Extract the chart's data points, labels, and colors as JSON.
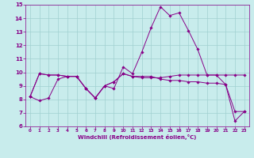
{
  "xlabel": "Windchill (Refroidissement éolien,°C)",
  "background_color": "#c8ecec",
  "grid_color": "#a0d0d0",
  "line_color": "#880088",
  "spine_color": "#880088",
  "x": [
    0,
    1,
    2,
    3,
    4,
    5,
    6,
    7,
    8,
    9,
    10,
    11,
    12,
    13,
    14,
    15,
    16,
    17,
    18,
    19,
    20,
    21,
    22,
    23
  ],
  "series": [
    [
      8.2,
      7.9,
      8.1,
      9.5,
      9.7,
      9.7,
      8.8,
      8.1,
      9.0,
      8.8,
      10.4,
      9.9,
      11.5,
      13.3,
      14.85,
      14.2,
      14.4,
      13.1,
      11.7,
      9.8,
      9.8,
      9.1,
      6.4,
      7.1
    ],
    [
      8.2,
      9.9,
      9.8,
      9.8,
      9.7,
      9.7,
      8.8,
      8.1,
      9.0,
      9.3,
      9.9,
      9.7,
      9.6,
      9.6,
      9.6,
      9.7,
      9.8,
      9.8,
      9.8,
      9.8,
      9.8,
      9.8,
      9.8,
      9.8
    ],
    [
      8.2,
      9.9,
      9.8,
      9.8,
      9.7,
      9.7,
      8.8,
      8.1,
      9.0,
      9.3,
      9.9,
      9.7,
      9.7,
      9.7,
      9.5,
      9.4,
      9.4,
      9.3,
      9.3,
      9.2,
      9.2,
      9.1,
      7.1,
      7.1
    ]
  ],
  "ylim": [
    6,
    15
  ],
  "xlim": [
    -0.5,
    23.5
  ],
  "xticks": [
    0,
    1,
    2,
    3,
    4,
    5,
    6,
    7,
    8,
    9,
    10,
    11,
    12,
    13,
    14,
    15,
    16,
    17,
    18,
    19,
    20,
    21,
    22,
    23
  ],
  "yticks": [
    6,
    7,
    8,
    9,
    10,
    11,
    12,
    13,
    14,
    15
  ]
}
